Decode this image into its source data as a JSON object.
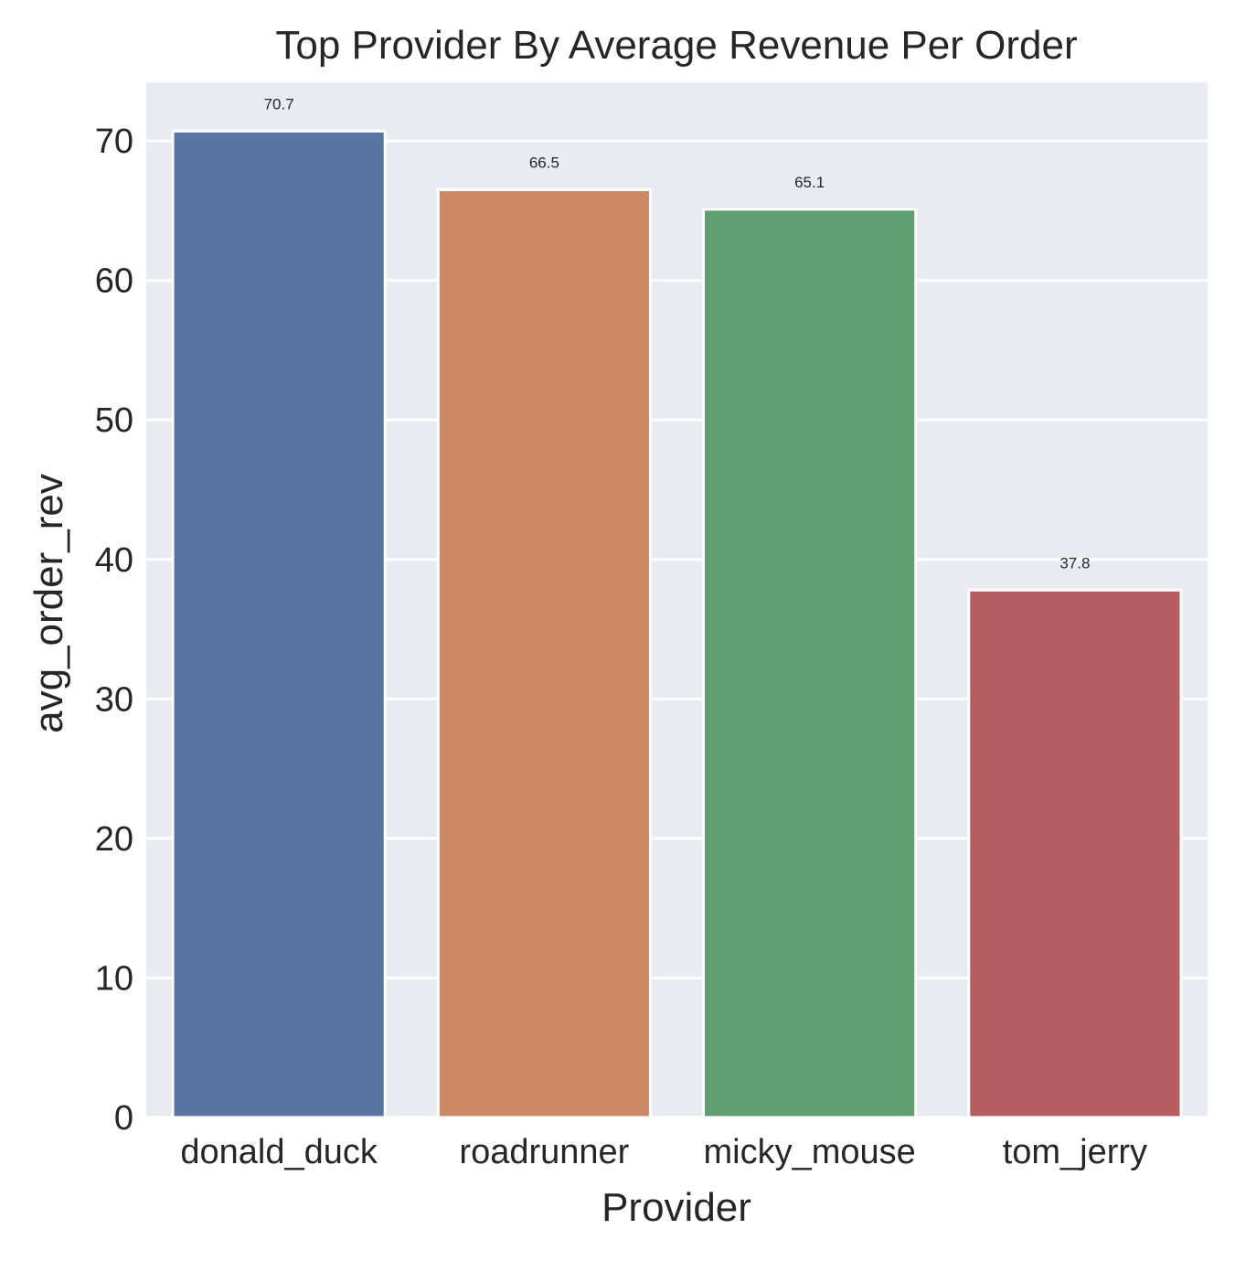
{
  "chart_data": {
    "type": "bar",
    "title": "Top Provider By Average Revenue Per Order",
    "xlabel": "Provider",
    "ylabel": "avg_order_rev",
    "categories": [
      "donald_duck",
      "roadrunner",
      "micky_mouse",
      "tom_jerry"
    ],
    "values": [
      70.7,
      66.5,
      65.1,
      37.8
    ],
    "data_labels": [
      "70.7",
      "66.5",
      "65.1",
      "37.8"
    ],
    "ylim": [
      0,
      74.2
    ],
    "yticks": [
      0,
      10,
      20,
      30,
      40,
      50,
      60,
      70
    ],
    "ytick_labels": [
      "0",
      "10",
      "20",
      "30",
      "40",
      "50",
      "60",
      "70"
    ],
    "grid": true,
    "legend": "none",
    "colors": {
      "plot_background": "#eaeaf2",
      "grid": "#ffffff",
      "text": "#262626",
      "bars": [
        "#5975a4",
        "#cc8963",
        "#5f9e6e",
        "#b55d60"
      ]
    }
  }
}
